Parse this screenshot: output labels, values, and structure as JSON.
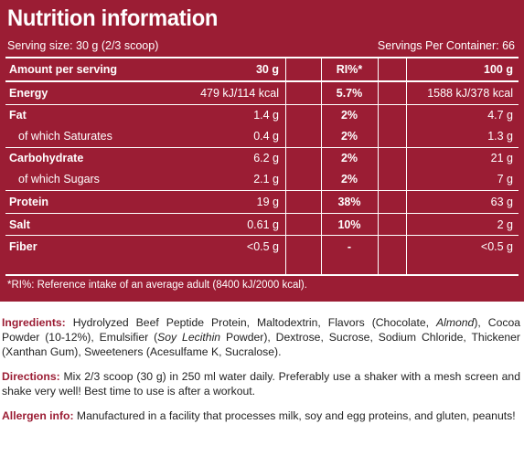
{
  "title": "Nutrition information",
  "serving_size": "Serving size: 30 g (2/3 scoop)",
  "servings_per_container": "Servings Per Container: 66",
  "table": {
    "headers": {
      "name": "Amount per serving",
      "per_serving": "30 g",
      "ri": "RI%*",
      "per_100": "100 g"
    },
    "rows": [
      {
        "name": "Energy",
        "per_serving": "479 kJ/114 kcal",
        "ri": "5.7%",
        "per_100": "1588 kJ/378 kcal"
      },
      {
        "name": "Fat",
        "per_serving": "1.4 g",
        "ri": "2%",
        "per_100": "4.7 g"
      },
      {
        "name": "of which Saturates",
        "per_serving": "0.4 g",
        "ri": "2%",
        "per_100": "1.3 g"
      },
      {
        "name": "Carbohydrate",
        "per_serving": "6.2 g",
        "ri": "2%",
        "per_100": "21 g"
      },
      {
        "name": "of which Sugars",
        "per_serving": "2.1 g",
        "ri": "2%",
        "per_100": "7 g"
      },
      {
        "name": "Protein",
        "per_serving": "19 g",
        "ri": "38%",
        "per_100": "63 g"
      },
      {
        "name": "Salt",
        "per_serving": "0.61 g",
        "ri": "10%",
        "per_100": "2 g"
      },
      {
        "name": "Fiber",
        "per_serving": "<0.5 g",
        "ri": "-",
        "per_100": "<0.5 g"
      }
    ]
  },
  "footnote": "*RI%: Reference intake of an average adult (8400 kJ/2000 kcal).",
  "ingredients": {
    "label": "Ingredients:",
    "text_1": " Hydrolyzed Beef Peptide Protein, Maltodextrin, Flavors (Chocolate, ",
    "italic_1": "Almond",
    "text_2": "), Cocoa Powder (10-12%), Emulsifier (",
    "italic_2": "Soy Lecithin",
    "text_3": " Powder), Dextrose, Sucrose, Sodium Chloride, Thickener (Xanthan Gum), Sweeteners (Acesulfame K, Sucralose)."
  },
  "directions": {
    "label": "Directions:",
    "text": " Mix 2/3 scoop (30 g) in 250 ml water daily. Preferably use a shaker with a mesh screen and shake very well! Best time to use is after a workout."
  },
  "allergen": {
    "label": "Allergen info:",
    "text": " Manufactured in a facility that processes milk, soy and egg proteins, and gluten, peanuts!"
  },
  "colors": {
    "panel": "#9b1d34",
    "text_on_panel": "#ffffff",
    "body_text": "#222222"
  }
}
